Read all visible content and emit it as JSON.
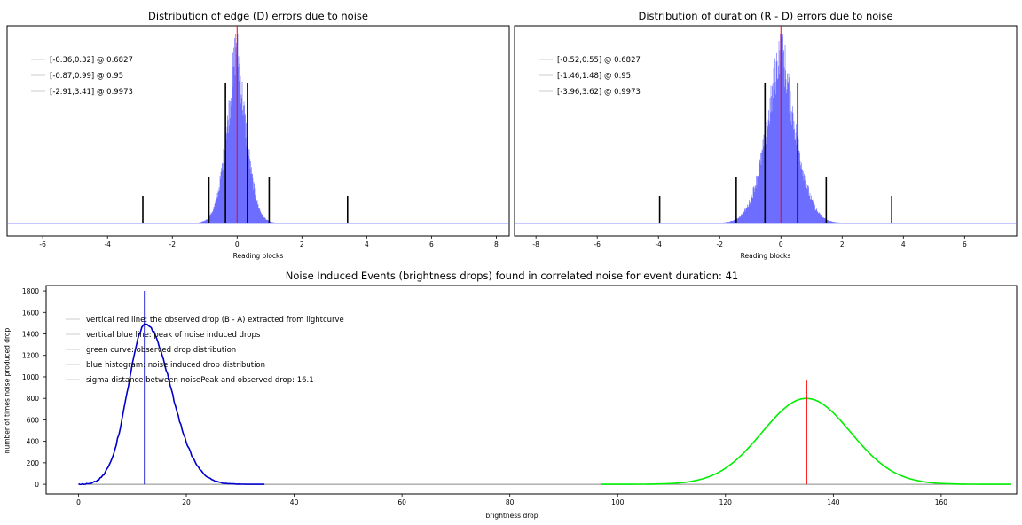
{
  "chart_data": [
    {
      "id": "edge",
      "type": "histogram",
      "title": "Distribution of edge (D) errors due to noise",
      "xlabel": "Reading blocks",
      "ylabel": "",
      "xlim": [
        -7.1,
        8.4
      ],
      "xticks": [
        -6,
        -4,
        -2,
        0,
        2,
        4,
        6,
        8
      ],
      "hist_sigma": 0.33,
      "hist_center": -0.02,
      "hist_color": "#4040ff",
      "center_line": {
        "x": 0,
        "color": "#ff0000"
      },
      "interval_lines": [
        {
          "x": -0.36,
          "level": "1sigma"
        },
        {
          "x": 0.32,
          "level": "1sigma"
        },
        {
          "x": -0.87,
          "level": "2sigma"
        },
        {
          "x": 0.99,
          "level": "2sigma"
        },
        {
          "x": -2.91,
          "level": "3sigma"
        },
        {
          "x": 3.41,
          "level": "3sigma"
        }
      ],
      "legend": [
        "[-0.36,0.32] @ 0.6827",
        "[-0.87,0.99] @ 0.95",
        "[-2.91,3.41] @ 0.9973"
      ],
      "legend_position": "top-left"
    },
    {
      "id": "duration",
      "type": "histogram",
      "title": "Distribution of duration (R - D) errors due to noise",
      "xlabel": "Reading blocks",
      "ylabel": "",
      "xlim": [
        -8.7,
        7.7
      ],
      "xticks": [
        -8,
        -6,
        -4,
        -2,
        0,
        2,
        4,
        6
      ],
      "hist_sigma": 0.53,
      "hist_center": 0.0,
      "hist_color": "#4040ff",
      "center_line": {
        "x": 0,
        "color": "#ff0000"
      },
      "interval_lines": [
        {
          "x": -0.52,
          "level": "1sigma"
        },
        {
          "x": 0.55,
          "level": "1sigma"
        },
        {
          "x": -1.46,
          "level": "2sigma"
        },
        {
          "x": 1.48,
          "level": "2sigma"
        },
        {
          "x": -3.96,
          "level": "3sigma"
        },
        {
          "x": 3.62,
          "level": "3sigma"
        }
      ],
      "legend": [
        "[-0.52,0.55] @ 0.6827",
        "[-1.46,1.48] @ 0.95",
        "[-3.96,3.62] @ 0.9973"
      ],
      "legend_position": "top-left"
    },
    {
      "id": "nie",
      "type": "line",
      "title": "Noise Induced Events (brightness drops) found in correlated noise for event duration: 41",
      "xlabel": "brightness drop",
      "ylabel": "number of times noise produced drop",
      "xlim": [
        -6,
        174
      ],
      "ylim": [
        -90,
        1850
      ],
      "xticks": [
        0,
        20,
        40,
        60,
        80,
        100,
        120,
        140,
        160
      ],
      "yticks": [
        0,
        200,
        400,
        600,
        800,
        1000,
        1200,
        1400,
        1600,
        1800
      ],
      "series": [
        {
          "name": "blue histogram",
          "color": "#0000cc",
          "peak_x": 12.5,
          "peak_y": 1490,
          "sigma_left": 3.3,
          "sigma_right": 4.6,
          "x_range": [
            0,
            34.5
          ]
        },
        {
          "name": "green curve",
          "color": "#00ee00",
          "peak_x": 135,
          "peak_y": 800,
          "sigma": 8.2,
          "x_range": [
            97,
            173
          ]
        }
      ],
      "vlines": [
        {
          "name": "noise peak",
          "x": 12.3,
          "y_top": 1800,
          "color": "#0000cc"
        },
        {
          "name": "observed drop",
          "x": 135,
          "y_top": 965,
          "color": "#ff0000"
        }
      ],
      "legend": [
        "vertical red line: the observed drop (B - A) extracted from lightcurve",
        "vertical blue line: peak of noise induced drops",
        "green curve: observed drop distribution",
        "blue histogram: noise induced drop distribution",
        "sigma distance between noisePeak and observed drop: 16.1"
      ],
      "legend_position": "top-left"
    }
  ]
}
